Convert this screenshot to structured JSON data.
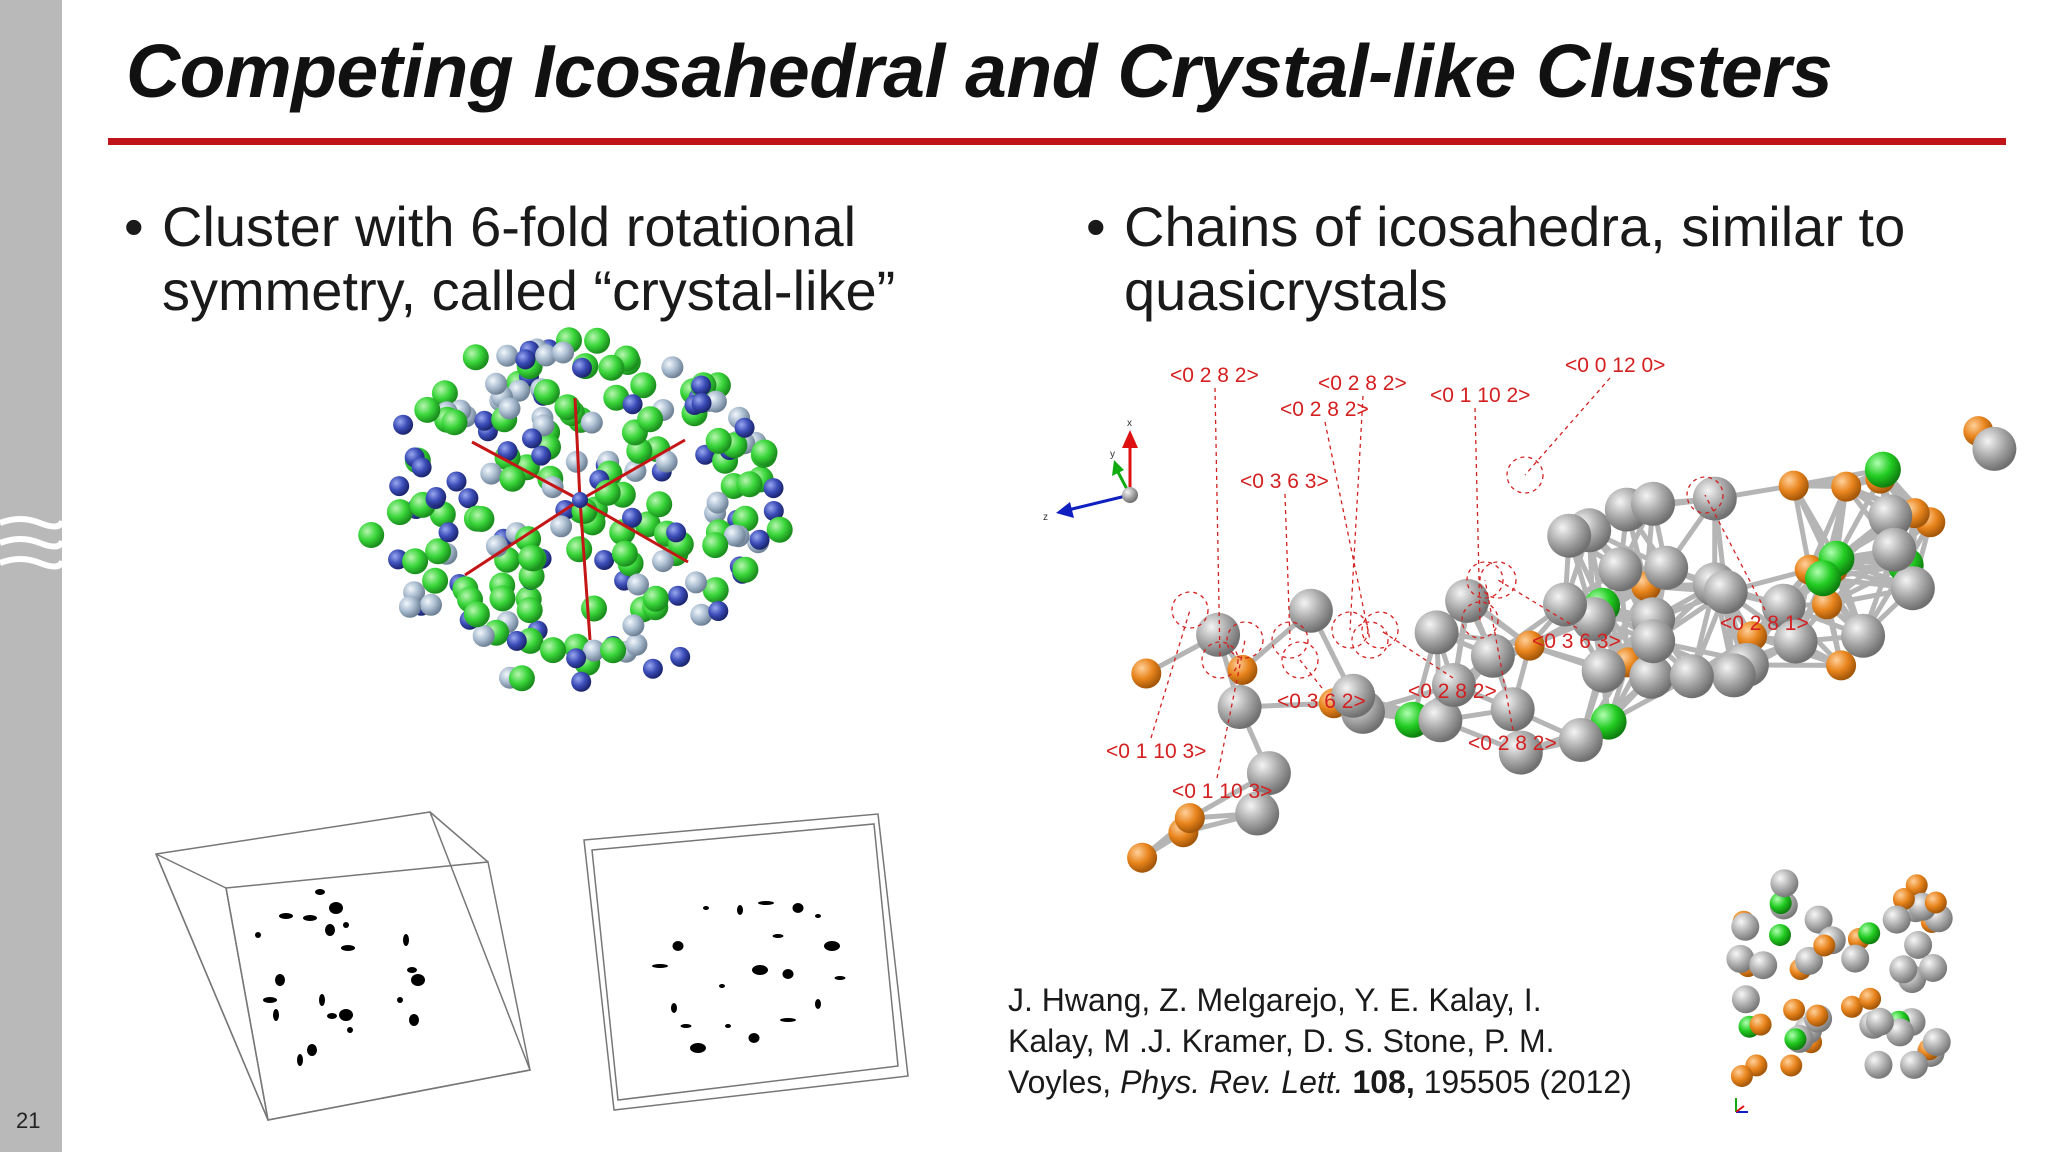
{
  "slide": {
    "page_number": "21",
    "title": "Competing Icosahedral and Crystal-like Clusters",
    "accent_color": "#c0141b"
  },
  "left_panel": {
    "bullet_marker": "•",
    "bullet_line1": "Cluster with 6-fold rotational",
    "bullet_line2": "symmetry, called “crystal-like”",
    "atom_colors": [
      "#39d63a",
      "#3b4db8",
      "#a9bccf"
    ]
  },
  "right_panel": {
    "bullet_marker": "•",
    "bullet_line1": "Chains of icosahedra, similar to",
    "bullet_line2": "quasicrystals",
    "atom_colors": [
      "#a0a0a0",
      "#e8841c",
      "#22cc22"
    ],
    "label_color": "#d42020",
    "axis_labels": {
      "x": "x",
      "y": "y",
      "z": "z"
    },
    "index_labels": [
      "<0 2 8 2>",
      "<0 2 8 2>",
      "<0 2 8 2>",
      "<0 1 10 2>",
      "<0 0 12 0>",
      "<0 3 6 3>",
      "<0 2 8 1>",
      "<0 3 6 3>",
      "<0 2 8 2>",
      "<0 3 6 2>",
      "<0 2 8 2>",
      "<0 1 10 3>",
      "<0 1 10 3>"
    ]
  },
  "citation": {
    "line1": "J. Hwang, Z. Melgarejo, Y. E. Kalay, I.",
    "line2": "Kalay, M .J. Kramer, D. S. Stone, P. M.",
    "line3_pre": "Voyles, ",
    "line3_journal": "Phys. Rev. Lett.",
    "line3_space": " ",
    "line3_volume": "108,",
    "line3_post": " 195505 (2012)"
  }
}
